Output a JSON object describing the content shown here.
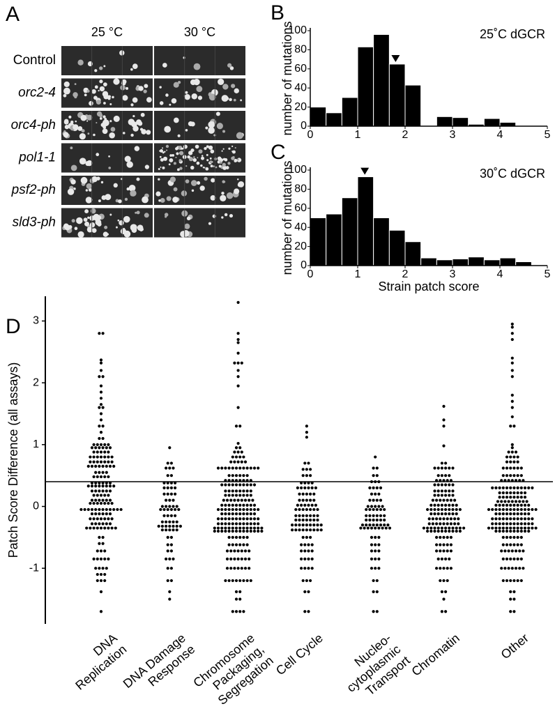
{
  "panel_a": {
    "label": "A",
    "columns": [
      "25 °C",
      "30 °C"
    ],
    "rows": [
      "Control",
      "orc2-4",
      "orc4-ph",
      "pol1-1",
      "psf2-ph",
      "sld3-ph"
    ]
  },
  "chart_data": [
    {
      "type": "histogram",
      "panel_label": "B",
      "title": "25˚C dGCR",
      "ylabel": "number of mutations",
      "bins": [
        0,
        0.333,
        0.667,
        1,
        1.333,
        1.667,
        2,
        2.333,
        2.667,
        3,
        3.333,
        3.667,
        4,
        4.333,
        4.667,
        5
      ],
      "values": [
        20,
        14,
        30,
        83,
        96,
        65,
        43,
        0,
        10,
        9,
        2,
        8,
        4,
        0,
        0
      ],
      "marker_x": 1.8,
      "color": "#000000",
      "xlim": [
        0,
        5
      ],
      "xticks": [
        0,
        1,
        2,
        3,
        4,
        5
      ],
      "ylim": [
        0,
        100
      ],
      "yticks": [
        0,
        20,
        40,
        60,
        80,
        100
      ]
    },
    {
      "type": "histogram",
      "panel_label": "C",
      "title": "30˚C dGCR",
      "ylabel": "number of mutations",
      "xlabel": "Strain patch score",
      "bins": [
        0,
        0.333,
        0.667,
        1,
        1.333,
        1.667,
        2,
        2.333,
        2.667,
        3,
        3.333,
        3.667,
        4,
        4.333,
        4.667,
        5
      ],
      "values": [
        50,
        54,
        71,
        93,
        50,
        37,
        25,
        8,
        6,
        7,
        9,
        6,
        8,
        4,
        0
      ],
      "marker_x": 1.15,
      "color": "#000000",
      "xlim": [
        0,
        5
      ],
      "xticks": [
        0,
        1,
        2,
        3,
        4,
        5
      ],
      "ylim": [
        0,
        100
      ],
      "yticks": [
        0,
        20,
        40,
        60,
        80,
        100
      ]
    },
    {
      "type": "strip",
      "panel_label": "D",
      "ylabel": "Patch Score Difference (all assays)",
      "categories": [
        "DNA\nReplication",
        "DNA Damage\nResponse",
        "Chromosome\nPackaging,\nSegregation",
        "Cell Cycle",
        "Nucleo-\ncytoplasmic\nTransport",
        "Chromatin",
        "Other"
      ],
      "values": [
        [
          2.8,
          2.8,
          2.37,
          2.32,
          2.2,
          2.1,
          2.1,
          1.95,
          1.85,
          1.75,
          1.65,
          1.6,
          1.6,
          1.5,
          1.4,
          1.3,
          1.3,
          1.2,
          1.1,
          1.1,
          1,
          1,
          1,
          1,
          1,
          0.95,
          0.95,
          0.95,
          0.95,
          0.95,
          0.95,
          0.88,
          0.88,
          0.88,
          0.88,
          0.88,
          0.8,
          0.8,
          0.8,
          0.8,
          0.8,
          0.8,
          0.8,
          0.72,
          0.72,
          0.72,
          0.72,
          0.72,
          0.72,
          0.72,
          0.65,
          0.65,
          0.65,
          0.65,
          0.65,
          0.65,
          0.65,
          0.65,
          0.55,
          0.55,
          0.55,
          0.55,
          0.48,
          0.48,
          0.48,
          0.48,
          0.48,
          0.38,
          0.38,
          0.38,
          0.38,
          0.38,
          0.38,
          0.33,
          0.33,
          0.33,
          0.33,
          0.33,
          0.33,
          0.33,
          0.33,
          0.25,
          0.25,
          0.25,
          0.25,
          0.25,
          0.25,
          0.18,
          0.18,
          0.18,
          0.18,
          0.18,
          0.1,
          0.1,
          0.1,
          0.1,
          0.1,
          0.1,
          0.05,
          0.05,
          0.05,
          0.05,
          0.05,
          0.05,
          0.05,
          -0.05,
          -0.05,
          -0.05,
          -0.05,
          -0.05,
          -0.05,
          -0.05,
          -0.05,
          -0.05,
          -0.05,
          -0.05,
          -0.05,
          -0.12,
          -0.12,
          -0.12,
          -0.12,
          -0.12,
          -0.12,
          -0.2,
          -0.2,
          -0.2,
          -0.2,
          -0.2,
          -0.2,
          -0.2,
          -0.28,
          -0.28,
          -0.28,
          -0.28,
          -0.28,
          -0.28,
          -0.35,
          -0.35,
          -0.35,
          -0.35,
          -0.35,
          -0.35,
          -0.35,
          -0.35,
          -0.35,
          -0.5,
          -0.5,
          -0.6,
          -0.6,
          -0.72,
          -0.72,
          -0.72,
          -0.85,
          -0.85,
          -0.85,
          -0.85,
          -0.85,
          -1,
          -1,
          -1,
          -1,
          -1.1,
          -1.1,
          -1.1,
          -1.2,
          -1.2,
          -1.2,
          -1.38,
          -1.7
        ],
        [
          0.95,
          0.7,
          0.7,
          0.62,
          0.62,
          0.62,
          0.5,
          0.5,
          0.38,
          0.38,
          0.38,
          0.38,
          0.3,
          0.3,
          0.3,
          0.3,
          0.2,
          0.2,
          0.2,
          0.2,
          0.1,
          0.1,
          0.1,
          0,
          0,
          0,
          0,
          0,
          -0.05,
          -0.05,
          -0.05,
          -0.05,
          -0.05,
          -0.05,
          -0.15,
          -0.15,
          -0.15,
          -0.15,
          -0.25,
          -0.25,
          -0.25,
          -0.25,
          -0.25,
          -0.32,
          -0.32,
          -0.32,
          -0.32,
          -0.32,
          -0.32,
          -0.32,
          -0.38,
          -0.38,
          -0.38,
          -0.38,
          -0.38,
          -0.5,
          -0.5,
          -0.62,
          -0.62,
          -0.72,
          -0.72,
          -0.85,
          -0.85,
          -0.85,
          -1,
          -1,
          -1.2,
          -1.2,
          -1.38,
          -1.5
        ],
        [
          3.3,
          2.8,
          2.7,
          2.65,
          2.48,
          2.32,
          2.32,
          2.32,
          2.2,
          2.1,
          1.95,
          1.6,
          1.3,
          1.3,
          1.02,
          0.95,
          0.95,
          0.88,
          0.88,
          0.88,
          0.8,
          0.8,
          0.8,
          0.8,
          0.72,
          0.72,
          0.72,
          0.72,
          0.72,
          0.62,
          0.62,
          0.62,
          0.62,
          0.62,
          0.62,
          0.62,
          0.62,
          0.62,
          0.62,
          0.62,
          0.62,
          0.5,
          0.5,
          0.5,
          0.5,
          0.5,
          0.5,
          0.42,
          0.42,
          0.42,
          0.42,
          0.42,
          0.42,
          0.42,
          0.42,
          0.35,
          0.35,
          0.35,
          0.35,
          0.35,
          0.35,
          0.35,
          0.35,
          0.35,
          0.35,
          0.25,
          0.25,
          0.25,
          0.25,
          0.25,
          0.25,
          0.25,
          0.25,
          0.18,
          0.18,
          0.18,
          0.18,
          0.18,
          0.18,
          0.18,
          0.18,
          0.1,
          0.1,
          0.1,
          0.1,
          0.1,
          0.1,
          0.1,
          0.1,
          0.1,
          0.02,
          0.02,
          0.02,
          0.02,
          0.02,
          0.02,
          0.02,
          0.02,
          0.02,
          0.02,
          -0.05,
          -0.05,
          -0.05,
          -0.05,
          -0.05,
          -0.05,
          -0.05,
          -0.05,
          -0.05,
          -0.05,
          -0.05,
          -0.05,
          -0.12,
          -0.12,
          -0.12,
          -0.12,
          -0.12,
          -0.12,
          -0.12,
          -0.12,
          -0.12,
          -0.12,
          -0.2,
          -0.2,
          -0.2,
          -0.2,
          -0.2,
          -0.2,
          -0.2,
          -0.2,
          -0.2,
          -0.2,
          -0.2,
          -0.2,
          -0.28,
          -0.28,
          -0.28,
          -0.28,
          -0.28,
          -0.28,
          -0.28,
          -0.28,
          -0.28,
          -0.28,
          -0.28,
          -0.28,
          -0.35,
          -0.35,
          -0.35,
          -0.35,
          -0.35,
          -0.35,
          -0.35,
          -0.35,
          -0.35,
          -0.35,
          -0.35,
          -0.35,
          -0.35,
          -0.35,
          -0.4,
          -0.4,
          -0.4,
          -0.4,
          -0.4,
          -0.4,
          -0.4,
          -0.4,
          -0.4,
          -0.4,
          -0.4,
          -0.4,
          -0.4,
          -0.4,
          -0.5,
          -0.5,
          -0.5,
          -0.5,
          -0.5,
          -0.5,
          -0.62,
          -0.62,
          -0.62,
          -0.62,
          -0.62,
          -0.62,
          -0.72,
          -0.72,
          -0.72,
          -0.72,
          -0.72,
          -0.72,
          -0.72,
          -0.85,
          -0.85,
          -0.85,
          -0.85,
          -0.85,
          -0.85,
          -0.85,
          -1,
          -1,
          -1,
          -1,
          -1,
          -1,
          -1,
          -1.2,
          -1.2,
          -1.2,
          -1.2,
          -1.2,
          -1.2,
          -1.2,
          -1.2,
          -1.38,
          -1.38,
          -1.5,
          -1.5,
          -1.7,
          -1.7,
          -1.7,
          -1.7
        ],
        [
          1.3,
          1.2,
          1.12,
          0.7,
          0.7,
          0.6,
          0.6,
          0.6,
          0.5,
          0.5,
          0.5,
          0.38,
          0.38,
          0.38,
          0.38,
          0.3,
          0.3,
          0.3,
          0.3,
          0.3,
          0.3,
          0.2,
          0.2,
          0.2,
          0.2,
          0.2,
          0.1,
          0.1,
          0.1,
          0.1,
          0.1,
          0.02,
          0.02,
          0.02,
          0.02,
          0.02,
          0.02,
          -0.05,
          -0.05,
          -0.05,
          -0.05,
          -0.05,
          -0.05,
          -0.05,
          -0.15,
          -0.15,
          -0.15,
          -0.15,
          -0.15,
          -0.15,
          -0.15,
          -0.22,
          -0.22,
          -0.22,
          -0.22,
          -0.22,
          -0.22,
          -0.22,
          -0.3,
          -0.3,
          -0.3,
          -0.3,
          -0.3,
          -0.3,
          -0.3,
          -0.3,
          -0.3,
          -0.38,
          -0.38,
          -0.38,
          -0.38,
          -0.38,
          -0.38,
          -0.38,
          -0.38,
          -0.38,
          -0.5,
          -0.5,
          -0.5,
          -0.62,
          -0.62,
          -0.62,
          -0.62,
          -0.72,
          -0.72,
          -0.72,
          -0.72,
          -0.85,
          -0.85,
          -0.85,
          -0.85,
          -1,
          -1,
          -1,
          -1,
          -1.2,
          -1.2,
          -1.2,
          -1.38,
          -1.38,
          -1.7,
          -1.7
        ],
        [
          0.8,
          0.62,
          0.62,
          0.5,
          0.5,
          0.4,
          0.4,
          0.4,
          0.3,
          0.3,
          0.3,
          0.3,
          0.2,
          0.2,
          0.2,
          0.1,
          0.1,
          0.1,
          0.1,
          0,
          0,
          0,
          0,
          0,
          -0.05,
          -0.05,
          -0.05,
          -0.05,
          -0.05,
          -0.05,
          -0.15,
          -0.15,
          -0.15,
          -0.15,
          -0.15,
          -0.15,
          -0.22,
          -0.22,
          -0.22,
          -0.22,
          -0.22,
          -0.22,
          -0.3,
          -0.3,
          -0.3,
          -0.3,
          -0.3,
          -0.3,
          -0.3,
          -0.3,
          -0.35,
          -0.35,
          -0.35,
          -0.35,
          -0.35,
          -0.35,
          -0.35,
          -0.35,
          -0.35,
          -0.5,
          -0.5,
          -0.5,
          -0.62,
          -0.62,
          -0.62,
          -0.72,
          -0.72,
          -0.72,
          -0.85,
          -0.85,
          -0.85,
          -1,
          -1,
          -1,
          -1.2,
          -1.2,
          -1.38,
          -1.38,
          -1.7,
          -1.7
        ],
        [
          1.62,
          1.4,
          1.3,
          0.98,
          0.7,
          0.7,
          0.62,
          0.62,
          0.62,
          0.62,
          0.62,
          0.62,
          0.5,
          0.5,
          0.5,
          0.5,
          0.42,
          0.42,
          0.42,
          0.42,
          0.42,
          0.35,
          0.35,
          0.35,
          0.35,
          0.35,
          0.35,
          0.25,
          0.25,
          0.25,
          0.25,
          0.25,
          0.25,
          0.18,
          0.18,
          0.18,
          0.18,
          0.18,
          0.18,
          0.1,
          0.1,
          0.1,
          0.1,
          0.1,
          0.1,
          0.1,
          0.02,
          0.02,
          0.02,
          0.02,
          0.02,
          0.02,
          0.02,
          0.02,
          -0.05,
          -0.05,
          -0.05,
          -0.05,
          -0.05,
          -0.05,
          -0.05,
          -0.05,
          -0.05,
          -0.05,
          -0.12,
          -0.12,
          -0.12,
          -0.12,
          -0.12,
          -0.12,
          -0.12,
          -0.12,
          -0.2,
          -0.2,
          -0.2,
          -0.2,
          -0.2,
          -0.2,
          -0.2,
          -0.2,
          -0.2,
          -0.28,
          -0.28,
          -0.28,
          -0.28,
          -0.28,
          -0.28,
          -0.28,
          -0.28,
          -0.28,
          -0.35,
          -0.35,
          -0.35,
          -0.35,
          -0.35,
          -0.35,
          -0.35,
          -0.35,
          -0.35,
          -0.35,
          -0.35,
          -0.35,
          -0.4,
          -0.4,
          -0.4,
          -0.4,
          -0.4,
          -0.4,
          -0.4,
          -0.4,
          -0.4,
          -0.4,
          -0.5,
          -0.5,
          -0.5,
          -0.5,
          -0.5,
          -0.62,
          -0.62,
          -0.62,
          -0.62,
          -0.62,
          -0.72,
          -0.72,
          -0.72,
          -0.72,
          -0.72,
          -0.85,
          -0.85,
          -0.85,
          -0.85,
          -1,
          -1,
          -1,
          -1,
          -1,
          -1.2,
          -1.2,
          -1.2,
          -1.38,
          -1.38,
          -1.5,
          -1.7,
          -1.7
        ],
        [
          2.95,
          2.9,
          2.8,
          2.7,
          2.4,
          2.32,
          2.2,
          2.1,
          1.8,
          1.7,
          1.6,
          1.45,
          1.3,
          1.3,
          1,
          0.95,
          0.88,
          0.88,
          0.88,
          0.8,
          0.8,
          0.8,
          0.8,
          0.72,
          0.72,
          0.72,
          0.72,
          0.62,
          0.62,
          0.62,
          0.62,
          0.62,
          0.62,
          0.5,
          0.5,
          0.5,
          0.5,
          0.5,
          0.5,
          0.42,
          0.42,
          0.42,
          0.42,
          0.42,
          0.42,
          0.42,
          0.3,
          0.3,
          0.3,
          0.3,
          0.3,
          0.3,
          0.3,
          0.3,
          0.3,
          0.3,
          0.3,
          0.3,
          0.22,
          0.22,
          0.22,
          0.22,
          0.22,
          0.22,
          0.22,
          0.22,
          0.15,
          0.15,
          0.15,
          0.15,
          0.15,
          0.15,
          0.15,
          0.15,
          0.08,
          0.08,
          0.08,
          0.08,
          0.08,
          0.08,
          0.08,
          0.08,
          0.08,
          0.02,
          0.02,
          0.02,
          0.02,
          0.02,
          0.02,
          0.02,
          0.02,
          0.02,
          0.02,
          -0.05,
          -0.05,
          -0.05,
          -0.05,
          -0.05,
          -0.05,
          -0.05,
          -0.05,
          -0.05,
          -0.05,
          -0.05,
          -0.05,
          -0.05,
          -0.05,
          -0.12,
          -0.12,
          -0.12,
          -0.12,
          -0.12,
          -0.12,
          -0.12,
          -0.12,
          -0.12,
          -0.12,
          -0.2,
          -0.2,
          -0.2,
          -0.2,
          -0.2,
          -0.2,
          -0.2,
          -0.2,
          -0.2,
          -0.2,
          -0.2,
          -0.2,
          -0.28,
          -0.28,
          -0.28,
          -0.28,
          -0.28,
          -0.28,
          -0.28,
          -0.28,
          -0.28,
          -0.28,
          -0.28,
          -0.28,
          -0.35,
          -0.35,
          -0.35,
          -0.35,
          -0.35,
          -0.35,
          -0.35,
          -0.35,
          -0.35,
          -0.35,
          -0.35,
          -0.35,
          -0.35,
          -0.35,
          -0.4,
          -0.4,
          -0.4,
          -0.4,
          -0.4,
          -0.4,
          -0.4,
          -0.4,
          -0.4,
          -0.4,
          -0.5,
          -0.5,
          -0.5,
          -0.5,
          -0.5,
          -0.5,
          -0.62,
          -0.62,
          -0.62,
          -0.62,
          -0.62,
          -0.62,
          -0.72,
          -0.72,
          -0.72,
          -0.72,
          -0.72,
          -0.72,
          -0.72,
          -0.85,
          -0.85,
          -0.85,
          -0.85,
          -0.85,
          -0.85,
          -1,
          -1,
          -1,
          -1,
          -1,
          -1,
          -1,
          -1.2,
          -1.2,
          -1.2,
          -1.2,
          -1.2,
          -1.2,
          -1.38,
          -1.38,
          -1.5,
          -1.5,
          -1.7,
          -1.7
        ]
      ],
      "hline": 0.4,
      "color": "#000000",
      "ylim": [
        -1.9,
        3.4
      ],
      "yticks": [
        -1,
        0,
        1,
        2,
        3
      ]
    }
  ]
}
